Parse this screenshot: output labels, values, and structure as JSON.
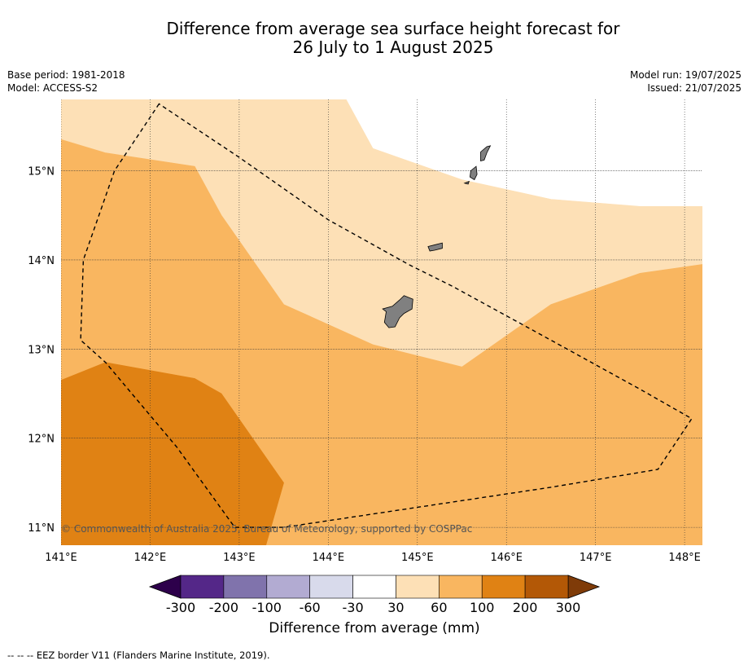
{
  "title": {
    "line1": "Difference from average sea surface height forecast for",
    "line2": "26 July to 1 August 2025"
  },
  "meta": {
    "base_period": "Base period: 1981-2018",
    "model": "Model: ACCESS-S2",
    "model_run": "Model run: 19/07/2025",
    "issued": "Issued: 21/07/2025"
  },
  "map": {
    "lon_range": [
      141.0,
      148.2
    ],
    "lat_range": [
      10.8,
      15.8
    ],
    "lon_ticks": [
      {
        "value": 141,
        "label": "141°E"
      },
      {
        "value": 142,
        "label": "142°E"
      },
      {
        "value": 143,
        "label": "143°E"
      },
      {
        "value": 144,
        "label": "144°E"
      },
      {
        "value": 145,
        "label": "145°E"
      },
      {
        "value": 146,
        "label": "146°E"
      },
      {
        "value": 147,
        "label": "147°E"
      },
      {
        "value": 148,
        "label": "148°E"
      }
    ],
    "lat_ticks": [
      {
        "value": 15,
        "label": "15°N"
      },
      {
        "value": 14,
        "label": "14°N"
      },
      {
        "value": 13,
        "label": "13°N"
      },
      {
        "value": 12,
        "label": "12°N"
      },
      {
        "value": 11,
        "label": "11°N"
      }
    ],
    "gridlines": true,
    "copyright": "© Commonwealth of Australia 2025, Bureau of Meteorology, supported by COSPPac",
    "regions": [
      {
        "name": "30 to 60 mm",
        "color": "#fde0b6",
        "coords": [
          [
            141,
            15.8
          ],
          [
            144.2,
            15.8
          ],
          [
            144.5,
            15.25
          ],
          [
            145.5,
            14.9
          ],
          [
            146.5,
            14.68
          ],
          [
            147.5,
            14.6
          ],
          [
            148.2,
            14.6
          ],
          [
            148.2,
            13.95
          ],
          [
            147.5,
            13.85
          ],
          [
            146.5,
            13.5
          ],
          [
            145.5,
            12.8
          ],
          [
            144.5,
            13.05
          ],
          [
            143.5,
            13.5
          ],
          [
            142.8,
            14.5
          ],
          [
            142.5,
            15.05
          ],
          [
            141.5,
            15.2
          ],
          [
            141,
            15.35
          ]
        ]
      },
      {
        "name": "60 to 100 mm",
        "color": "#f9b660",
        "coords": [
          [
            141,
            15.35
          ],
          [
            141.5,
            15.2
          ],
          [
            142.5,
            15.05
          ],
          [
            142.8,
            14.5
          ],
          [
            143.5,
            13.5
          ],
          [
            144.5,
            13.05
          ],
          [
            145.5,
            12.8
          ],
          [
            146.5,
            13.5
          ],
          [
            147.5,
            13.85
          ],
          [
            148.2,
            13.95
          ],
          [
            148.2,
            10.8
          ],
          [
            143.3,
            10.8
          ],
          [
            143.5,
            11.5
          ],
          [
            142.8,
            12.5
          ],
          [
            142.5,
            12.67
          ],
          [
            141.5,
            12.85
          ],
          [
            141,
            12.65
          ]
        ]
      },
      {
        "name": "100 to 200 mm",
        "color": "#e08214",
        "coords": [
          [
            141,
            12.65
          ],
          [
            141.5,
            12.85
          ],
          [
            142.5,
            12.67
          ],
          [
            142.8,
            12.5
          ],
          [
            143.5,
            11.5
          ],
          [
            143.3,
            10.8
          ],
          [
            141,
            10.8
          ]
        ]
      }
    ],
    "islands": [
      {
        "name": "Guam",
        "coords": [
          [
            144.85,
            13.6
          ],
          [
            144.95,
            13.56
          ],
          [
            144.94,
            13.45
          ],
          [
            144.85,
            13.4
          ],
          [
            144.8,
            13.35
          ],
          [
            144.75,
            13.25
          ],
          [
            144.68,
            13.24
          ],
          [
            144.63,
            13.3
          ],
          [
            144.65,
            13.42
          ],
          [
            144.61,
            13.45
          ],
          [
            144.72,
            13.48
          ],
          [
            144.8,
            13.55
          ]
        ]
      },
      {
        "name": "Rota",
        "coords": [
          [
            145.12,
            14.15
          ],
          [
            145.2,
            14.17
          ],
          [
            145.28,
            14.19
          ],
          [
            145.28,
            14.13
          ],
          [
            145.2,
            14.11
          ],
          [
            145.14,
            14.1
          ]
        ]
      },
      {
        "name": "Tinian",
        "coords": [
          [
            145.6,
            15.0
          ],
          [
            145.66,
            15.05
          ],
          [
            145.67,
            14.96
          ],
          [
            145.64,
            14.9
          ],
          [
            145.59,
            14.93
          ]
        ]
      },
      {
        "name": "Saipan",
        "coords": [
          [
            145.71,
            15.21
          ],
          [
            145.78,
            15.27
          ],
          [
            145.82,
            15.28
          ],
          [
            145.78,
            15.2
          ],
          [
            145.75,
            15.12
          ],
          [
            145.71,
            15.11
          ]
        ]
      },
      {
        "name": "Aguijan",
        "coords": [
          [
            145.53,
            14.86
          ],
          [
            145.58,
            14.88
          ],
          [
            145.57,
            14.85
          ]
        ]
      }
    ],
    "eez_border": [
      [
        142.1,
        15.75
      ],
      [
        141.6,
        15.0
      ],
      [
        141.25,
        14.0
      ],
      [
        141.22,
        13.1
      ],
      [
        141.5,
        12.85
      ],
      [
        142.3,
        11.9
      ],
      [
        142.95,
        11.0
      ],
      [
        143.5,
        11.0
      ],
      [
        144.5,
        11.15
      ],
      [
        145.5,
        11.3
      ],
      [
        146.5,
        11.45
      ],
      [
        147.7,
        11.65
      ],
      [
        148.08,
        12.22
      ],
      [
        147.5,
        12.55
      ],
      [
        146.5,
        13.1
      ],
      [
        145.4,
        13.7
      ],
      [
        144.9,
        13.95
      ],
      [
        144.0,
        14.45
      ],
      [
        143.0,
        15.15
      ]
    ]
  },
  "colorbar": {
    "ticks": [
      "-300",
      "-200",
      "-100",
      "-60",
      "-30",
      "30",
      "60",
      "100",
      "200",
      "300"
    ],
    "low_extend_color": "#2d004b",
    "high_extend_color": "#7f3b08",
    "colors": [
      "#542788",
      "#8073ac",
      "#b2abd2",
      "#d8daeb",
      "#ffffff",
      "#fde0b6",
      "#f9b660",
      "#e08214",
      "#b35806"
    ],
    "label": "Difference from average (mm)"
  },
  "footer": {
    "legend_note": "--  --  -- EEZ border V11 (Flanders Marine Institute, 2019)."
  }
}
